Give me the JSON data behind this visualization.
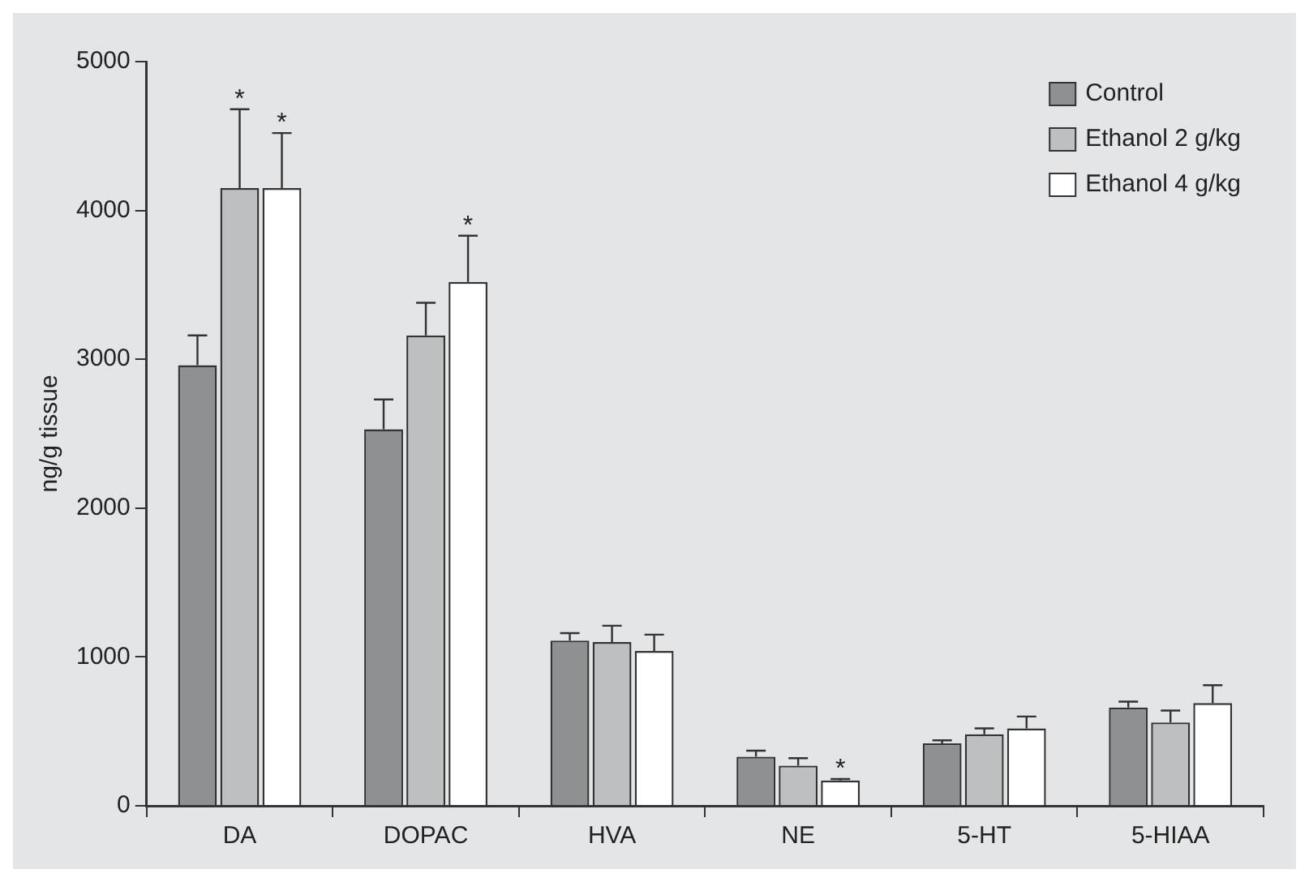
{
  "chart_data": {
    "type": "bar",
    "ylabel": "ng/g tissue",
    "categories": [
      "DA",
      "DOPAC",
      "HVA",
      "NE",
      "5-HT",
      "5-HIAA"
    ],
    "series": [
      {
        "name": "Control",
        "color": "#8f9091",
        "values": [
          2960,
          2530,
          1110,
          330,
          420,
          660
        ],
        "errors": [
          200,
          200,
          50,
          40,
          20,
          40
        ]
      },
      {
        "name": "Ethanol 2 g/kg",
        "color": "#bebfc1",
        "values": [
          4150,
          3160,
          1100,
          270,
          480,
          560
        ],
        "errors": [
          530,
          220,
          110,
          50,
          40,
          80
        ]
      },
      {
        "name": "Ethanol 4 g/kg",
        "color": "#ffffff",
        "values": [
          4150,
          3520,
          1040,
          170,
          520,
          690
        ],
        "errors": [
          370,
          310,
          110,
          10,
          80,
          120
        ]
      }
    ],
    "ylim": [
      0,
      5000
    ],
    "yticks": [
      0,
      1000,
      2000,
      3000,
      4000,
      5000
    ],
    "grid": false,
    "legend": "top right",
    "annotations": [
      "*",
      "*",
      "*",
      "*"
    ]
  }
}
